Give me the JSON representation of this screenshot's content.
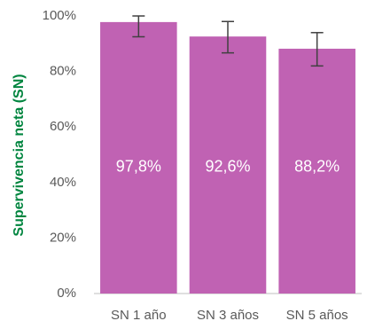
{
  "chart_data": {
    "type": "bar",
    "title": "",
    "xlabel": "",
    "ylabel": "Supervivencia neta (SN)",
    "categories": [
      "SN 1 año",
      "SN 3 años",
      "SN 5 años"
    ],
    "values": [
      97.8,
      92.6,
      88.2
    ],
    "data_labels": [
      "97,8%",
      "92,6%",
      "88,2%"
    ],
    "error_low": [
      92.5,
      86.7,
      82.0
    ],
    "error_high": [
      100.0,
      98.0,
      94.0
    ],
    "ylim": [
      0,
      100
    ],
    "yticks": [
      0,
      20,
      40,
      60,
      80,
      100
    ],
    "ytick_labels": [
      "0%",
      "20%",
      "40%",
      "60%",
      "80%",
      "100%"
    ],
    "grid": false,
    "legend": "none",
    "colors": {
      "bar": "#C062B3",
      "error_bar": "#404040",
      "axis": "#BFBFBF",
      "ylabel": "#00853F"
    }
  }
}
